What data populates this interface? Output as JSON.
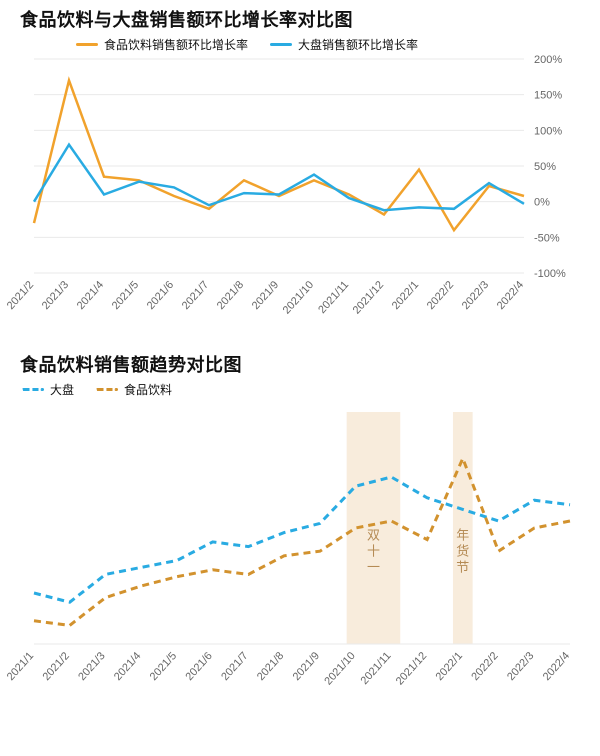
{
  "chart1": {
    "type": "line",
    "title": "食品饮料与大盘销售额环比增长率对比图",
    "title_fontsize": 18,
    "legend": [
      {
        "label": "食品饮料销售额环比增长率",
        "color": "#f1a22c",
        "dash": false
      },
      {
        "label": "大盘销售额环比增长率",
        "color": "#29abe2",
        "dash": false
      }
    ],
    "x_labels": [
      "2021/2",
      "2021/3",
      "2021/4",
      "2021/5",
      "2021/6",
      "2021/7",
      "2021/8",
      "2021/9",
      "2021/10",
      "2021/11",
      "2021/12",
      "2022/1",
      "2022/2",
      "2022/3",
      "2022/4"
    ],
    "series": [
      {
        "name": "food_bev_growth",
        "color": "#f1a22c",
        "dash": false,
        "values": [
          -30,
          170,
          35,
          30,
          8,
          -10,
          30,
          8,
          30,
          10,
          -18,
          45,
          -40,
          22,
          8
        ]
      },
      {
        "name": "market_growth",
        "color": "#29abe2",
        "dash": false,
        "values": [
          0,
          80,
          10,
          28,
          20,
          -5,
          12,
          10,
          38,
          5,
          -12,
          -8,
          -10,
          26,
          -3
        ]
      }
    ],
    "ylim": [
      -100,
      200
    ],
    "ytick_step": 50,
    "y_unit": "%",
    "x_label_fontsize": 11,
    "y_label_fontsize": 11,
    "grid_color": "#eaeaea",
    "background_color": "#ffffff",
    "line_width": 2.5
  },
  "chart2": {
    "type": "line",
    "title": "食品饮料销售额趋势对比图",
    "title_fontsize": 18,
    "legend": [
      {
        "label": "大盘",
        "color": "#29abe2",
        "dash": true
      },
      {
        "label": "食品饮料",
        "color": "#d2922e",
        "dash": true
      }
    ],
    "x_labels": [
      "2021/1",
      "2021/2",
      "2021/3",
      "2021/4",
      "2021/5",
      "2021/6",
      "2021/7",
      "2021/8",
      "2021/9",
      "2021/10",
      "2021/11",
      "2021/12",
      "2022/1",
      "2022/2",
      "2022/3",
      "2022/4"
    ],
    "series": [
      {
        "name": "market_trend",
        "color": "#29abe2",
        "dash": true,
        "values": [
          22,
          18,
          30,
          33,
          36,
          44,
          42,
          48,
          52,
          68,
          72,
          63,
          58,
          53,
          62,
          60
        ]
      },
      {
        "name": "food_bev_trend",
        "color": "#d2922e",
        "dash": true,
        "values": [
          10,
          8,
          20,
          25,
          29,
          32,
          30,
          38,
          40,
          50,
          53,
          45,
          80,
          40,
          50,
          53
        ]
      }
    ],
    "ylim": [
      0,
      100
    ],
    "highlight_bands": [
      {
        "x_from": "2021/10",
        "x_to": "2021/11",
        "label": "双十一"
      },
      {
        "x_from": "2022/1",
        "x_to": "2022/1",
        "label": "年货节",
        "narrow": true
      }
    ],
    "band_color": "#f7ead8",
    "band_label_color": "#b58b55",
    "x_label_fontsize": 11,
    "background_color": "#ffffff",
    "line_width": 3,
    "dash_pattern": "7 5"
  }
}
